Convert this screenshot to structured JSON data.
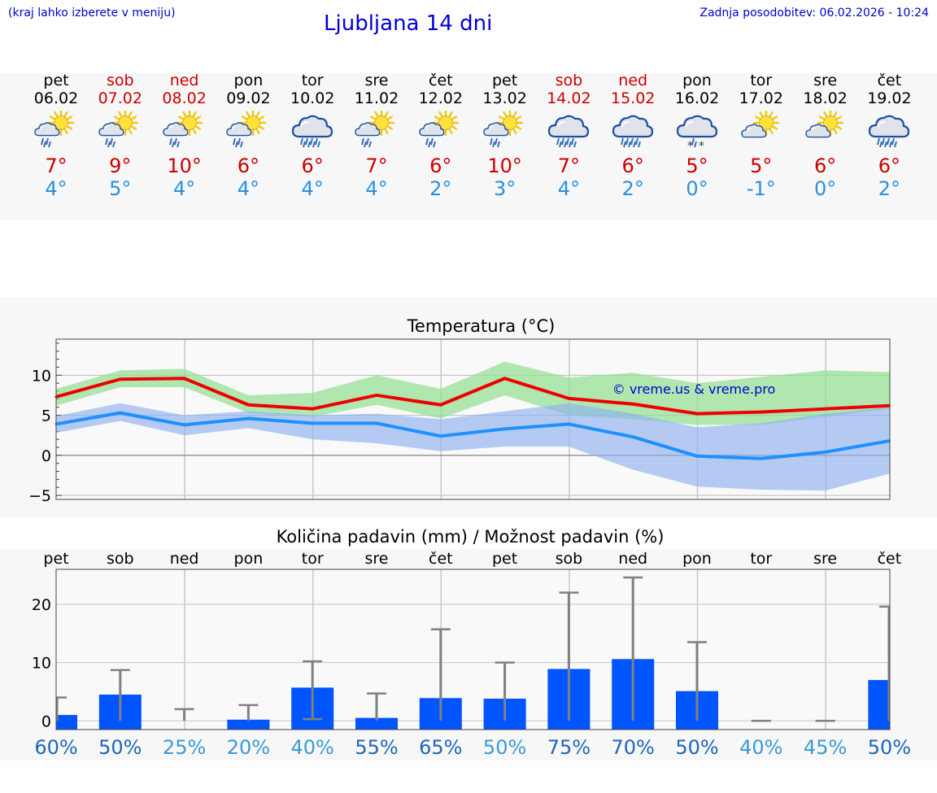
{
  "header": {
    "note": "(kraj lahko izberete v meniju)",
    "title": "Ljubljana 14 dni",
    "updated": "Zadnja posodobitev: 06.02.2026 - 10:24"
  },
  "colors": {
    "weekend": "#cc0000",
    "tmax": "#cc0000",
    "tmin": "#2a8fe0",
    "maxLine": "#ee0000",
    "minLine": "#1e90ff",
    "maxBand": "#90e090",
    "minBand": "#8fb0f0",
    "bar": "#0055ff",
    "errbar": "#808080"
  },
  "days": [
    {
      "name": "pet",
      "date": "06.02",
      "weekend": false,
      "icon": "partly-sunny-rain-icon",
      "tmax": "7°",
      "tmin": "4°"
    },
    {
      "name": "sob",
      "date": "07.02",
      "weekend": true,
      "icon": "partly-sunny-rain-icon",
      "tmax": "9°",
      "tmin": "5°"
    },
    {
      "name": "ned",
      "date": "08.02",
      "weekend": true,
      "icon": "partly-sunny-rain-icon",
      "tmax": "10°",
      "tmin": "4°"
    },
    {
      "name": "pon",
      "date": "09.02",
      "weekend": false,
      "icon": "partly-sunny-rain-icon",
      "tmax": "6°",
      "tmin": "4°"
    },
    {
      "name": "tor",
      "date": "10.02",
      "weekend": false,
      "icon": "cloud-rain-icon",
      "tmax": "6°",
      "tmin": "4°"
    },
    {
      "name": "sre",
      "date": "11.02",
      "weekend": false,
      "icon": "partly-sunny-rain-icon",
      "tmax": "7°",
      "tmin": "4°"
    },
    {
      "name": "čet",
      "date": "12.02",
      "weekend": false,
      "icon": "partly-sunny-rain-icon",
      "tmax": "6°",
      "tmin": "2°"
    },
    {
      "name": "pet",
      "date": "13.02",
      "weekend": false,
      "icon": "partly-sunny-rain-icon",
      "tmax": "10°",
      "tmin": "3°"
    },
    {
      "name": "sob",
      "date": "14.02",
      "weekend": true,
      "icon": "cloud-rain-icon",
      "tmax": "7°",
      "tmin": "4°"
    },
    {
      "name": "ned",
      "date": "15.02",
      "weekend": true,
      "icon": "cloud-rain-icon",
      "tmax": "6°",
      "tmin": "2°"
    },
    {
      "name": "pon",
      "date": "16.02",
      "weekend": false,
      "icon": "cloud-sleet-icon",
      "tmax": "5°",
      "tmin": "0°"
    },
    {
      "name": "tor",
      "date": "17.02",
      "weekend": false,
      "icon": "partly-sunny-icon",
      "tmax": "5°",
      "tmin": "-1°"
    },
    {
      "name": "sre",
      "date": "18.02",
      "weekend": false,
      "icon": "partly-sunny-icon",
      "tmax": "6°",
      "tmin": "0°"
    },
    {
      "name": "čet",
      "date": "19.02",
      "weekend": false,
      "icon": "cloud-rain-icon",
      "tmax": "6°",
      "tmin": "2°"
    }
  ],
  "chart_data": [
    {
      "type": "line",
      "title": "Temperatura (°C)",
      "watermark": "© vreme.us & vreme.pro",
      "ylim": [
        -5.5,
        14.5
      ],
      "yticks": [
        -5,
        0,
        5,
        10
      ],
      "grid": true,
      "series": [
        {
          "key": "max",
          "values": [
            7.3,
            9.5,
            9.6,
            6.3,
            5.8,
            7.5,
            6.3,
            9.6,
            7.1,
            6.4,
            5.2,
            5.4,
            5.8,
            6.2
          ],
          "band_low": [
            6.2,
            8.5,
            8.5,
            5.3,
            4.8,
            6.3,
            4.6,
            7.5,
            5.0,
            4.5,
            3.8,
            3.8,
            4.8,
            5.8
          ],
          "band_high": [
            8.3,
            10.6,
            10.8,
            7.5,
            7.8,
            10.0,
            8.3,
            11.7,
            9.7,
            10.3,
            9.0,
            9.8,
            10.6,
            10.4
          ]
        },
        {
          "key": "min",
          "values": [
            3.9,
            5.3,
            3.8,
            4.6,
            4.0,
            4.0,
            2.4,
            3.3,
            3.9,
            2.3,
            -0.1,
            -0.4,
            0.4,
            1.8
          ],
          "band_low": [
            2.8,
            4.3,
            2.5,
            3.4,
            2.0,
            1.5,
            0.5,
            1.1,
            1.1,
            -1.8,
            -3.9,
            -4.3,
            -4.4,
            -2.3
          ],
          "band_high": [
            4.9,
            6.5,
            5.0,
            5.5,
            5.0,
            5.2,
            4.5,
            5.5,
            6.5,
            5.2,
            3.5,
            4.0,
            5.2,
            6.0
          ]
        }
      ]
    },
    {
      "type": "bar",
      "title": "Količina padavin (mm) / Možnost padavin (%)",
      "categories": [
        "pet",
        "sob",
        "ned",
        "pon",
        "tor",
        "sre",
        "čet",
        "pet",
        "sob",
        "ned",
        "pon",
        "tor",
        "sre",
        "čet"
      ],
      "ylim": [
        -1.5,
        26
      ],
      "yticks": [
        0,
        10,
        20
      ],
      "grid": true,
      "values": [
        1.0,
        4.5,
        0,
        0.2,
        5.7,
        0.5,
        3.9,
        3.8,
        8.9,
        10.6,
        5.1,
        0,
        0,
        7.0
      ],
      "err_low": [
        0,
        0,
        0,
        0,
        0.3,
        0,
        0,
        0,
        0,
        0,
        0,
        0,
        0,
        0
      ],
      "err_high": [
        4.0,
        8.7,
        2.0,
        2.7,
        10.2,
        4.7,
        15.7,
        10.0,
        22.0,
        24.6,
        13.5,
        0,
        0,
        19.6
      ],
      "probabilities": [
        "60%",
        "50%",
        "25%",
        "20%",
        "40%",
        "55%",
        "65%",
        "50%",
        "75%",
        "70%",
        "50%",
        "40%",
        "45%",
        "50%"
      ],
      "prob_colors": [
        "#1e66b8",
        "#1e66b8",
        "#3a9ad8",
        "#3a9ad8",
        "#3a9ad8",
        "#1e66b8",
        "#1e66b8",
        "#3a9ad8",
        "#1e66b8",
        "#1e66b8",
        "#1e66b8",
        "#3a9ad8",
        "#3a9ad8",
        "#1e66b8"
      ]
    }
  ]
}
